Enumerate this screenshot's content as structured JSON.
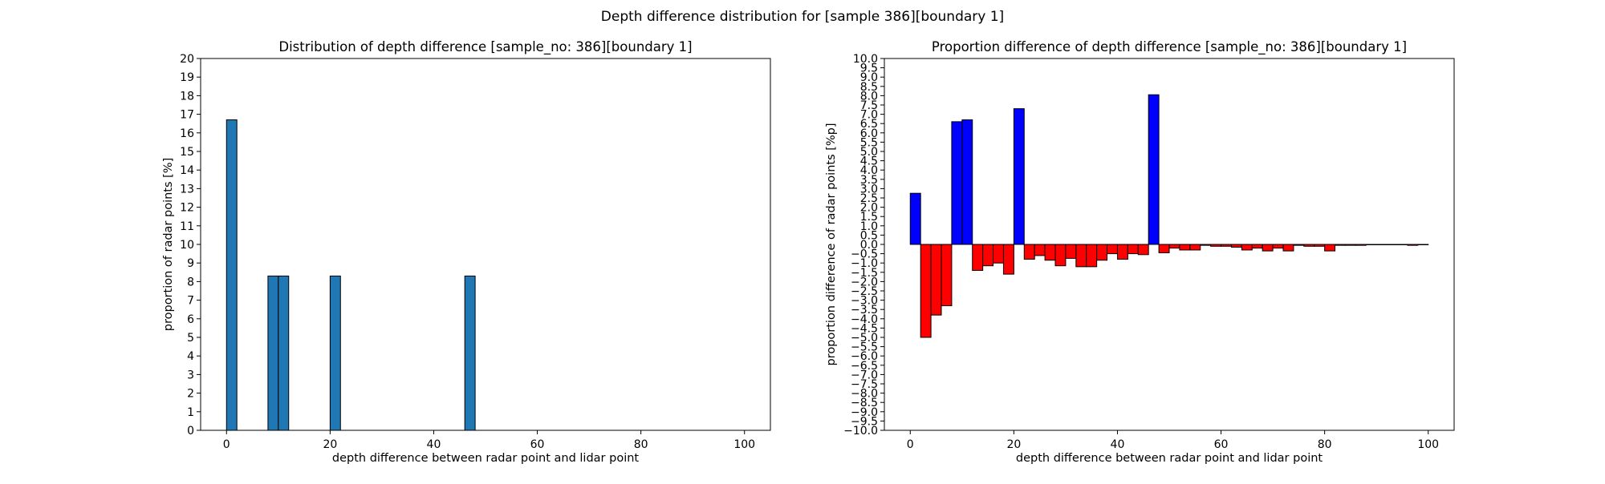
{
  "figure": {
    "suptitle": "Depth difference distribution for [sample 386][boundary 1]"
  },
  "chart_data": [
    {
      "type": "bar",
      "title": "Distribution of depth difference [sample_no: 386][boundary 1]",
      "xlabel": "depth difference between radar point and lidar point",
      "ylabel": "proportion of radar points [%]",
      "xlim": [
        -5,
        105
      ],
      "ylim": [
        0,
        20
      ],
      "xticks": [
        0,
        20,
        40,
        60,
        80,
        100
      ],
      "yticks": [
        0,
        1,
        2,
        3,
        4,
        5,
        6,
        7,
        8,
        9,
        10,
        11,
        12,
        13,
        14,
        15,
        16,
        17,
        18,
        19,
        20
      ],
      "bin_width": 2,
      "grid": false,
      "bar_color": "#1f77b4",
      "edge_color": "#000000",
      "bars": [
        {
          "x": 1,
          "value": 16.7
        },
        {
          "x": 9,
          "value": 8.3
        },
        {
          "x": 11,
          "value": 8.3
        },
        {
          "x": 21,
          "value": 8.3
        },
        {
          "x": 47,
          "value": 8.3
        }
      ]
    },
    {
      "type": "bar",
      "title": "Proportion difference of depth difference [sample_no: 386][boundary 1]",
      "xlabel": "depth difference between radar point and lidar point",
      "ylabel": "proportion difference of radar points [%p]",
      "xlim": [
        -5,
        105
      ],
      "ylim": [
        -10,
        10
      ],
      "xticks": [
        0,
        20,
        40,
        60,
        80,
        100
      ],
      "yticks": [
        -10.0,
        -9.5,
        -9.0,
        -8.5,
        -8.0,
        -7.5,
        -7.0,
        -6.5,
        -6.0,
        -5.5,
        -5.0,
        -4.5,
        -4.0,
        -3.5,
        -3.0,
        -2.5,
        -2.0,
        -1.5,
        -1.0,
        -0.5,
        0.0,
        0.5,
        1.0,
        1.5,
        2.0,
        2.5,
        3.0,
        3.5,
        4.0,
        4.5,
        5.0,
        5.5,
        6.0,
        6.5,
        7.0,
        7.5,
        8.0,
        8.5,
        9.0,
        9.5,
        10.0
      ],
      "bin_width": 2,
      "grid": false,
      "positive_color": "#0000ff",
      "negative_color": "#ff0000",
      "edge_color": "#000000",
      "bars": [
        {
          "x": 1,
          "value": 2.75
        },
        {
          "x": 3,
          "value": -5.0
        },
        {
          "x": 5,
          "value": -3.8
        },
        {
          "x": 7,
          "value": -3.3
        },
        {
          "x": 9,
          "value": 6.6
        },
        {
          "x": 11,
          "value": 6.7
        },
        {
          "x": 13,
          "value": -1.4
        },
        {
          "x": 15,
          "value": -1.15
        },
        {
          "x": 17,
          "value": -1.0
        },
        {
          "x": 19,
          "value": -1.6
        },
        {
          "x": 21,
          "value": 7.3
        },
        {
          "x": 23,
          "value": -0.8
        },
        {
          "x": 25,
          "value": -0.6
        },
        {
          "x": 27,
          "value": -0.85
        },
        {
          "x": 29,
          "value": -1.15
        },
        {
          "x": 31,
          "value": -0.75
        },
        {
          "x": 33,
          "value": -1.2
        },
        {
          "x": 35,
          "value": -1.2
        },
        {
          "x": 37,
          "value": -0.85
        },
        {
          "x": 39,
          "value": -0.5
        },
        {
          "x": 41,
          "value": -0.8
        },
        {
          "x": 43,
          "value": -0.5
        },
        {
          "x": 45,
          "value": -0.55
        },
        {
          "x": 47,
          "value": 8.05
        },
        {
          "x": 49,
          "value": -0.45
        },
        {
          "x": 51,
          "value": -0.2
        },
        {
          "x": 53,
          "value": -0.3
        },
        {
          "x": 55,
          "value": -0.3
        },
        {
          "x": 57,
          "value": -0.05
        },
        {
          "x": 59,
          "value": -0.1
        },
        {
          "x": 61,
          "value": -0.1
        },
        {
          "x": 63,
          "value": -0.15
        },
        {
          "x": 65,
          "value": -0.3
        },
        {
          "x": 67,
          "value": -0.2
        },
        {
          "x": 69,
          "value": -0.35
        },
        {
          "x": 71,
          "value": -0.2
        },
        {
          "x": 73,
          "value": -0.35
        },
        {
          "x": 75,
          "value": -0.05
        },
        {
          "x": 77,
          "value": -0.1
        },
        {
          "x": 79,
          "value": -0.1
        },
        {
          "x": 81,
          "value": -0.35
        },
        {
          "x": 83,
          "value": -0.05
        },
        {
          "x": 85,
          "value": -0.05
        },
        {
          "x": 87,
          "value": -0.05
        },
        {
          "x": 89,
          "value": -0.02
        },
        {
          "x": 91,
          "value": -0.02
        },
        {
          "x": 93,
          "value": -0.02
        },
        {
          "x": 95,
          "value": -0.02
        },
        {
          "x": 97,
          "value": -0.05
        },
        {
          "x": 99,
          "value": -0.02
        }
      ]
    }
  ]
}
